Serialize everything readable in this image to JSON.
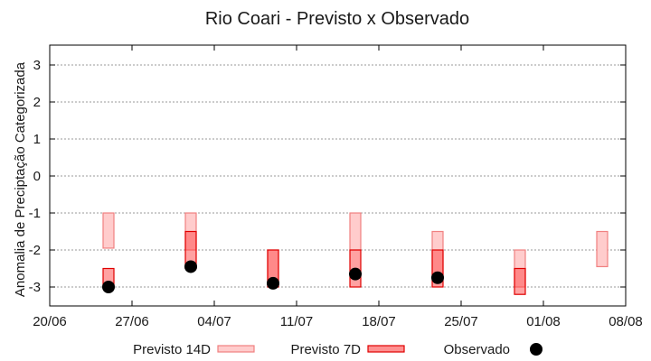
{
  "chart_data": {
    "type": "bar",
    "subtype": "floating-range-boxes-with-points",
    "title": "Rio Coari - Previsto x Observado",
    "xlabel": "",
    "ylabel": "Anomalia de Preciptação Categorizada",
    "ylim": [
      -3.5,
      3.5
    ],
    "yticks": [
      3,
      2,
      1,
      0,
      -1,
      -2,
      -3
    ],
    "grid": "horizontal dotted",
    "x_ticks": [
      "20/06",
      "27/06",
      "04/07",
      "11/07",
      "18/07",
      "25/07",
      "01/08",
      "08/08"
    ],
    "x_range": [
      "20/06",
      "08/08"
    ],
    "legend_position": "bottom",
    "legend": [
      {
        "label": "Previsto 14D",
        "type": "box",
        "fill": "#ffcccc",
        "stroke": "#f08080"
      },
      {
        "label": "Previsto 7D",
        "type": "box",
        "fill": "#ff9090",
        "stroke": "#e00000"
      },
      {
        "label": "Observado",
        "type": "point",
        "color": "#000000"
      }
    ],
    "categories": [
      "25/06",
      "02/07",
      "09/07",
      "16/07",
      "23/07",
      "30/07",
      "06/08"
    ],
    "series": [
      {
        "name": "Previsto 14D",
        "ranges": [
          [
            -1,
            -1.95
          ],
          [
            -1,
            -2
          ],
          [
            -2,
            -3
          ],
          [
            -1,
            -2
          ],
          [
            -1.5,
            -2.75
          ],
          [
            -2,
            -3
          ],
          [
            -1.5,
            -2.45
          ]
        ]
      },
      {
        "name": "Previsto 7D",
        "ranges": [
          [
            -2.5,
            -3
          ],
          [
            -1.5,
            -2.5
          ],
          [
            -2,
            -3
          ],
          [
            -2,
            -3
          ],
          [
            -2,
            -3
          ],
          [
            -2.5,
            -3.2
          ],
          null
        ]
      },
      {
        "name": "Observado",
        "values": [
          -3,
          -2.45,
          -2.9,
          -2.65,
          -2.75,
          null,
          null
        ]
      }
    ]
  }
}
